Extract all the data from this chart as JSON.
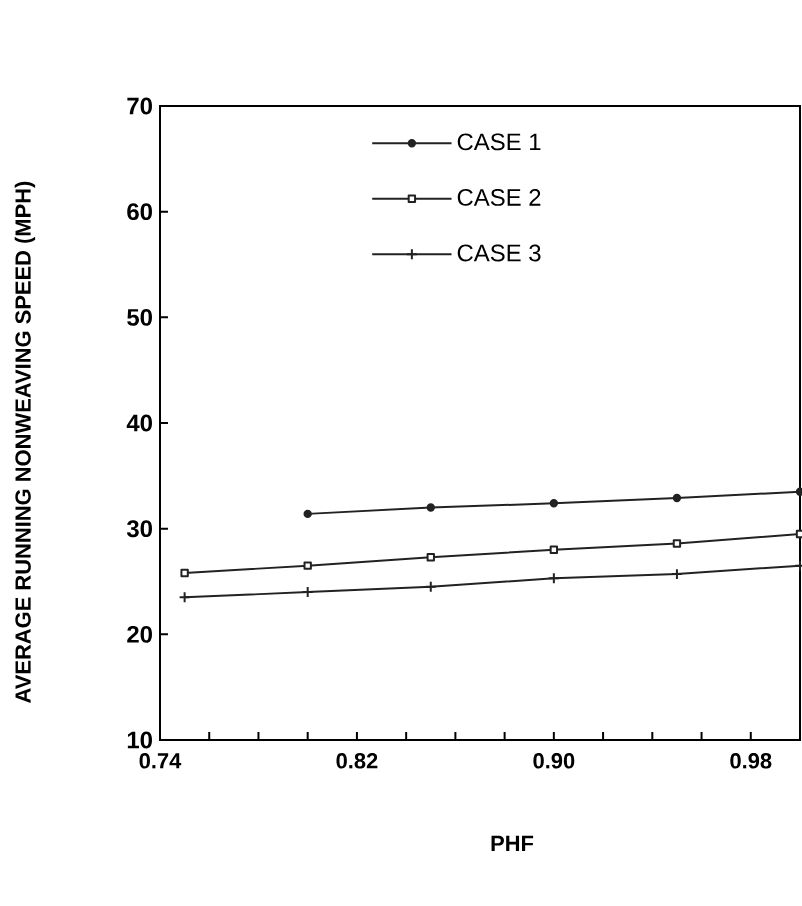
{
  "chart_data": {
    "type": "line",
    "xlabel": "PHF",
    "ylabel": "AVERAGE RUNNING NONWEAVING SPEED (MPH)",
    "xlim": [
      0.74,
      1.0
    ],
    "ylim": [
      10,
      70
    ],
    "xticks": [
      {
        "value": 0.74,
        "label": "0.74"
      },
      {
        "value": 0.76,
        "label": null
      },
      {
        "value": 0.78,
        "label": null
      },
      {
        "value": 0.8,
        "label": null
      },
      {
        "value": 0.82,
        "label": "0.82"
      },
      {
        "value": 0.84,
        "label": null
      },
      {
        "value": 0.86,
        "label": null
      },
      {
        "value": 0.88,
        "label": null
      },
      {
        "value": 0.9,
        "label": "0.90"
      },
      {
        "value": 0.92,
        "label": null
      },
      {
        "value": 0.94,
        "label": null
      },
      {
        "value": 0.96,
        "label": null
      },
      {
        "value": 0.98,
        "label": "0.98"
      },
      {
        "value": 1.0,
        "label": null
      }
    ],
    "yticks": [
      10,
      20,
      30,
      40,
      50,
      60,
      70
    ],
    "legend": "top",
    "line_style": "solid",
    "series": [
      {
        "name": "CASE 1",
        "color": "#222222",
        "marker": "circle",
        "x": [
          0.8,
          0.85,
          0.9,
          0.95,
          1.0
        ],
        "values": [
          31.4,
          32.0,
          32.4,
          32.9,
          33.5
        ]
      },
      {
        "name": "CASE 2",
        "color": "#222222",
        "marker": "square",
        "x": [
          0.75,
          0.8,
          0.85,
          0.9,
          0.95,
          1.0
        ],
        "values": [
          25.8,
          26.5,
          27.3,
          28.0,
          28.6,
          29.5
        ]
      },
      {
        "name": "CASE 3",
        "color": "#222222",
        "marker": "cross",
        "x": [
          0.75,
          0.8,
          0.85,
          0.9,
          0.95,
          1.0
        ],
        "values": [
          23.5,
          24.0,
          24.5,
          25.3,
          25.7,
          26.5
        ]
      }
    ]
  }
}
